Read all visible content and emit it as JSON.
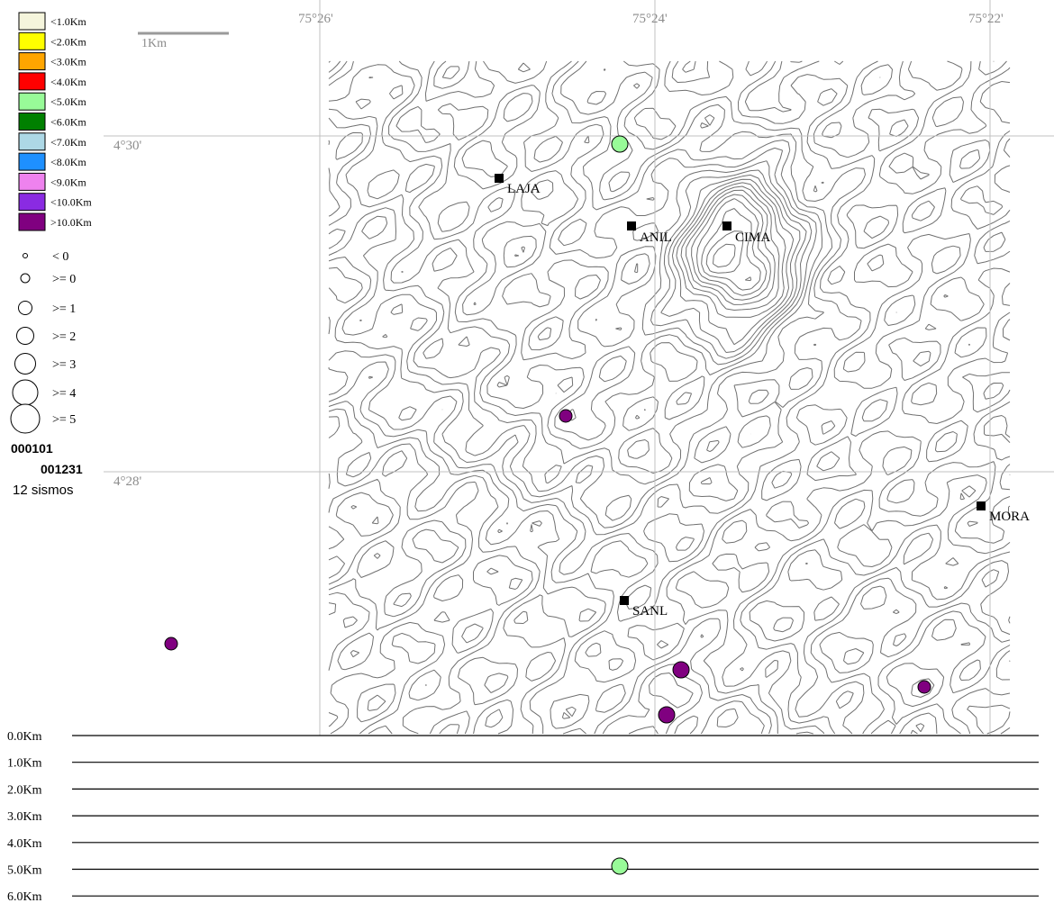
{
  "depth_legend": [
    {
      "label": "<1.0Km",
      "color": "#f5f5dc"
    },
    {
      "label": "<2.0Km",
      "color": "#ffff00"
    },
    {
      "label": "<3.0Km",
      "color": "#ffa500"
    },
    {
      "label": "<4.0Km",
      "color": "#ff0000"
    },
    {
      "label": "<5.0Km",
      "color": "#98fb98"
    },
    {
      "label": "<6.0Km",
      "color": "#008000"
    },
    {
      "label": "<7.0Km",
      "color": "#add8e6"
    },
    {
      "label": "<8.0Km",
      "color": "#1e90ff"
    },
    {
      "label": "<9.0Km",
      "color": "#ee82ee"
    },
    {
      "label": "<10.0Km",
      "color": "#8a2be2"
    },
    {
      "label": ">10.0Km",
      "color": "#800080"
    }
  ],
  "magnitude_legend": [
    "< 0",
    ">= 0",
    ">= 1",
    ">= 2",
    ">= 3",
    ">= 4",
    ">= 5"
  ],
  "date_start": "000101",
  "date_end": "001231",
  "event_count": "12 sismos",
  "scale_bar_label": "1Km",
  "longitude_labels": [
    "75°26'",
    "75°24'",
    "75°22'"
  ],
  "latitude_labels": [
    "4°30'",
    "4°28'"
  ],
  "stations": [
    "LAJA",
    "ANIL",
    "CIMA",
    "MORA",
    "SANL"
  ],
  "depth_axis_labels": [
    "0.0Km",
    "1.0Km",
    "2.0Km",
    "3.0Km",
    "4.0Km",
    "5.0Km",
    "6.0Km"
  ],
  "colors": {
    "grid": "#c0c0c0",
    "contour": "#707070",
    "station": "#000000",
    "deep_event": "#800080",
    "shallow_event": "#98fb98"
  }
}
